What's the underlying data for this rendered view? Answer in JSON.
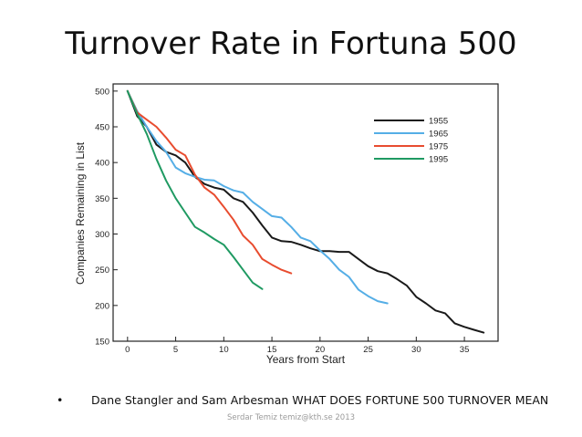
{
  "slide": {
    "title": "Turnover Rate in Fortuna 500",
    "bullet_marker": "•",
    "bullet_text": "Dane Stangler and Sam Arbesman WHAT DOES  FORTUNE 500 TURNOVER MEAN",
    "footer": "Serdar Temiz temiz@kth.se 2013"
  },
  "chart_data": {
    "type": "line",
    "title": "",
    "xlabel": "Years from Start",
    "ylabel": "Companies Remaining in List",
    "xlim": [
      -1.5,
      38.5
    ],
    "ylim": [
      150,
      510
    ],
    "xticks": [
      0,
      5,
      10,
      15,
      20,
      25,
      30,
      35
    ],
    "yticks": [
      150,
      200,
      250,
      300,
      350,
      400,
      450,
      500
    ],
    "legend_position": "top-right",
    "series": [
      {
        "name": "1955",
        "color": "#1a1a1a",
        "x": [
          0,
          1,
          2,
          3,
          4,
          5,
          6,
          7,
          8,
          9,
          10,
          11,
          12,
          13,
          14,
          15,
          16,
          17,
          18,
          19,
          20,
          21,
          22,
          23,
          24,
          25,
          26,
          27,
          28,
          29,
          30,
          31,
          32,
          33,
          34,
          35,
          36,
          37
        ],
        "values": [
          500,
          465,
          450,
          425,
          415,
          410,
          400,
          380,
          370,
          365,
          362,
          350,
          345,
          330,
          312,
          295,
          290,
          289,
          285,
          280,
          276,
          276,
          275,
          275,
          265,
          255,
          248,
          245,
          237,
          228,
          212,
          203,
          193,
          189,
          175,
          170,
          166,
          162
        ]
      },
      {
        "name": "1965",
        "color": "#55aee6",
        "x": [
          0,
          1,
          2,
          3,
          4,
          5,
          6,
          7,
          8,
          9,
          10,
          11,
          12,
          13,
          14,
          15,
          16,
          17,
          18,
          19,
          20,
          21,
          22,
          23,
          24,
          25,
          26,
          27
        ],
        "values": [
          500,
          472,
          450,
          430,
          415,
          393,
          385,
          380,
          376,
          375,
          367,
          361,
          358,
          345,
          335,
          325,
          323,
          310,
          295,
          290,
          277,
          265,
          250,
          240,
          222,
          213,
          206,
          203
        ]
      },
      {
        "name": "1975",
        "color": "#e84c2f",
        "x": [
          0,
          1,
          2,
          3,
          4,
          5,
          6,
          7,
          8,
          9,
          10,
          11,
          12,
          13,
          14,
          15,
          16,
          17
        ],
        "values": [
          500,
          470,
          460,
          450,
          435,
          418,
          410,
          383,
          365,
          355,
          338,
          320,
          298,
          285,
          265,
          257,
          250,
          245
        ]
      },
      {
        "name": "1995",
        "color": "#1f9a62",
        "x": [
          0,
          1,
          2,
          3,
          4,
          5,
          6,
          7,
          8,
          9,
          10,
          11,
          12,
          13,
          14
        ],
        "values": [
          500,
          468,
          440,
          405,
          375,
          350,
          330,
          310,
          302,
          293,
          285,
          268,
          250,
          232,
          223
        ]
      }
    ]
  }
}
